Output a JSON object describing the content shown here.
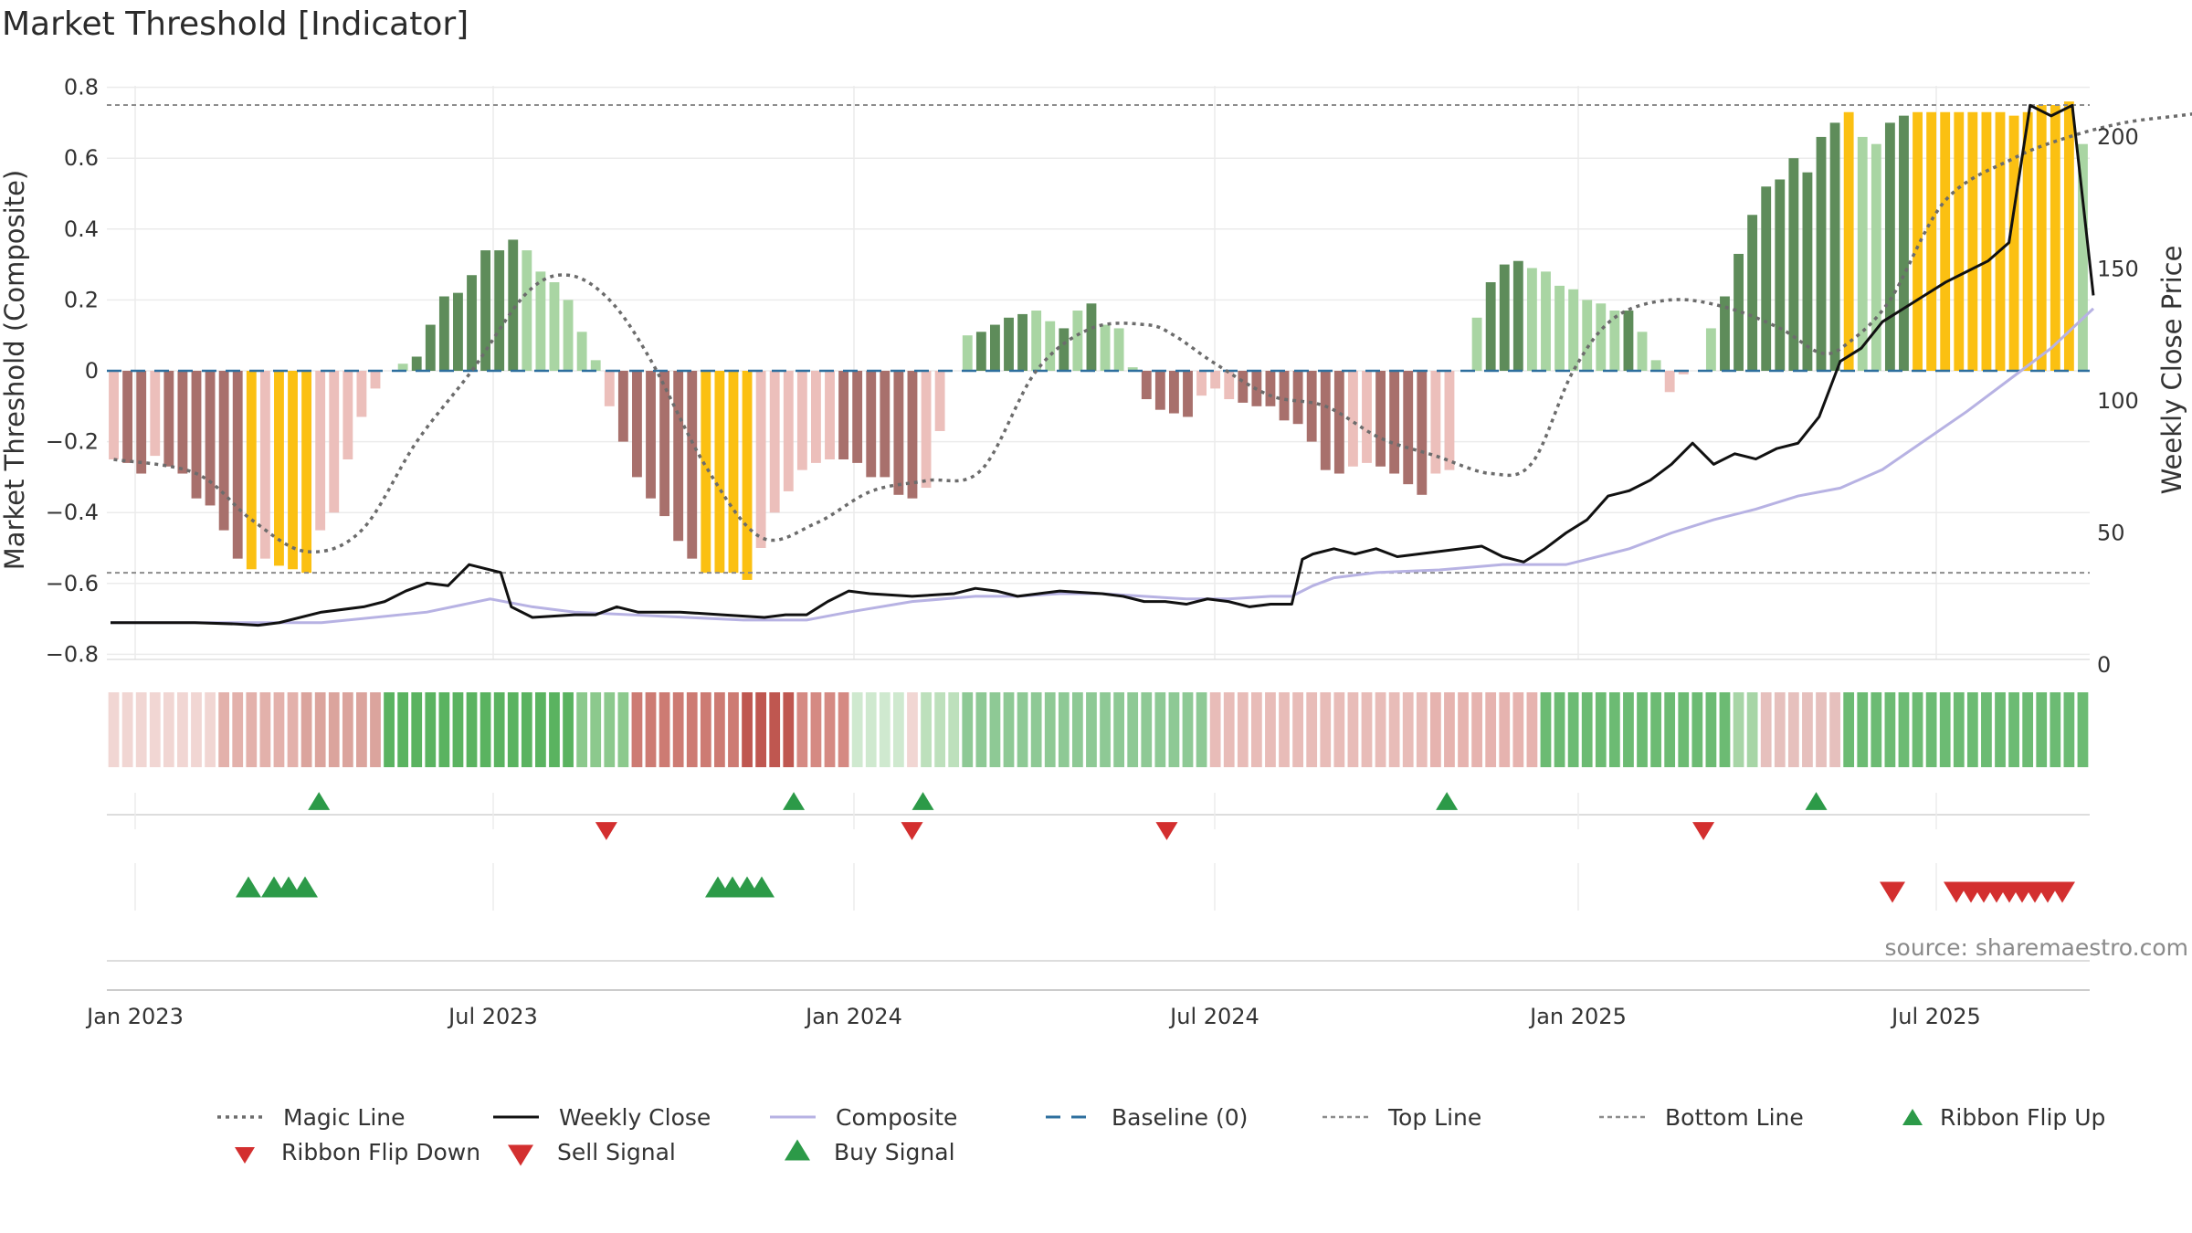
{
  "title": "Market Threshold [Indicator]",
  "source": "source: sharemaestro.com",
  "colors": {
    "weak_red": "#ecbfbb",
    "strong_red": "#a8706c",
    "extreme": "#fbc012",
    "weak_green": "#a9d5a3",
    "strong_green": "#5e8c5a",
    "magic": "#6c6c6c",
    "close": "#111111",
    "composite": "#b7b2e3",
    "baseline": "#2e6f9e",
    "ref": "#8c8c8c",
    "up": "#2c9a48",
    "down": "#d32f2f"
  },
  "chart_data": {
    "type": "bar+line",
    "title": "Market Threshold [Indicator]",
    "ylabel": "Market Threshold (Composite)",
    "y2label": "Weekly Close Price",
    "ylim": [
      -0.82,
      0.82
    ],
    "y2lim": [
      0,
      220
    ],
    "yticks": [
      "0.8",
      "0.6",
      "0.4",
      "0.2",
      "0",
      "−0.2",
      "−0.4",
      "−0.6",
      "−0.8"
    ],
    "y2ticks": [
      "200",
      "150",
      "100",
      "50",
      "0"
    ],
    "xticks": [
      "Jan 2023",
      "Jul 2023",
      "Jan 2024",
      "Jul 2024",
      "Jan 2025",
      "Jul 2025"
    ],
    "top_line": 0.75,
    "bottom_line": -0.57,
    "baseline": 0,
    "bars": [
      [
        -0.25,
        "w"
      ],
      [
        -0.26,
        "s"
      ],
      [
        -0.29,
        "s"
      ],
      [
        -0.24,
        "w"
      ],
      [
        -0.27,
        "s"
      ],
      [
        -0.29,
        "s"
      ],
      [
        -0.36,
        "s"
      ],
      [
        -0.38,
        "s"
      ],
      [
        -0.45,
        "s"
      ],
      [
        -0.53,
        "s"
      ],
      [
        -0.56,
        "e"
      ],
      [
        -0.53,
        "w"
      ],
      [
        -0.55,
        "e"
      ],
      [
        -0.56,
        "e"
      ],
      [
        -0.57,
        "e"
      ],
      [
        -0.45,
        "w"
      ],
      [
        -0.4,
        "w"
      ],
      [
        -0.25,
        "w"
      ],
      [
        -0.13,
        "w"
      ],
      [
        -0.05,
        "w"
      ],
      [
        0.0,
        "w"
      ],
      [
        0.02,
        "w"
      ],
      [
        0.04,
        "s"
      ],
      [
        0.13,
        "s"
      ],
      [
        0.21,
        "s"
      ],
      [
        0.22,
        "s"
      ],
      [
        0.27,
        "s"
      ],
      [
        0.34,
        "s"
      ],
      [
        0.34,
        "s"
      ],
      [
        0.37,
        "s"
      ],
      [
        0.34,
        "w"
      ],
      [
        0.28,
        "w"
      ],
      [
        0.25,
        "w"
      ],
      [
        0.2,
        "w"
      ],
      [
        0.11,
        "w"
      ],
      [
        0.03,
        "w"
      ],
      [
        -0.1,
        "w"
      ],
      [
        -0.2,
        "s"
      ],
      [
        -0.3,
        "s"
      ],
      [
        -0.36,
        "s"
      ],
      [
        -0.41,
        "s"
      ],
      [
        -0.48,
        "s"
      ],
      [
        -0.53,
        "s"
      ],
      [
        -0.57,
        "e"
      ],
      [
        -0.57,
        "e"
      ],
      [
        -0.57,
        "e"
      ],
      [
        -0.59,
        "e"
      ],
      [
        -0.5,
        "w"
      ],
      [
        -0.4,
        "w"
      ],
      [
        -0.34,
        "w"
      ],
      [
        -0.28,
        "w"
      ],
      [
        -0.26,
        "w"
      ],
      [
        -0.25,
        "w"
      ],
      [
        -0.25,
        "s"
      ],
      [
        -0.26,
        "s"
      ],
      [
        -0.3,
        "s"
      ],
      [
        -0.3,
        "s"
      ],
      [
        -0.35,
        "s"
      ],
      [
        -0.36,
        "s"
      ],
      [
        -0.33,
        "w"
      ],
      [
        -0.17,
        "w"
      ],
      [
        0.0,
        "w"
      ],
      [
        0.1,
        "w"
      ],
      [
        0.11,
        "s"
      ],
      [
        0.13,
        "s"
      ],
      [
        0.15,
        "s"
      ],
      [
        0.16,
        "s"
      ],
      [
        0.17,
        "w"
      ],
      [
        0.14,
        "w"
      ],
      [
        0.12,
        "s"
      ],
      [
        0.17,
        "w"
      ],
      [
        0.19,
        "s"
      ],
      [
        0.13,
        "w"
      ],
      [
        0.12,
        "w"
      ],
      [
        0.01,
        "w"
      ],
      [
        -0.08,
        "s"
      ],
      [
        -0.11,
        "s"
      ],
      [
        -0.12,
        "s"
      ],
      [
        -0.13,
        "s"
      ],
      [
        -0.07,
        "w"
      ],
      [
        -0.05,
        "w"
      ],
      [
        -0.08,
        "w"
      ],
      [
        -0.09,
        "s"
      ],
      [
        -0.1,
        "s"
      ],
      [
        -0.1,
        "s"
      ],
      [
        -0.14,
        "s"
      ],
      [
        -0.15,
        "s"
      ],
      [
        -0.2,
        "s"
      ],
      [
        -0.28,
        "s"
      ],
      [
        -0.29,
        "s"
      ],
      [
        -0.27,
        "w"
      ],
      [
        -0.26,
        "w"
      ],
      [
        -0.27,
        "s"
      ],
      [
        -0.29,
        "s"
      ],
      [
        -0.32,
        "s"
      ],
      [
        -0.35,
        "s"
      ],
      [
        -0.29,
        "w"
      ],
      [
        -0.28,
        "w"
      ],
      [
        0.0,
        "w"
      ],
      [
        0.15,
        "w"
      ],
      [
        0.25,
        "s"
      ],
      [
        0.3,
        "s"
      ],
      [
        0.31,
        "s"
      ],
      [
        0.29,
        "w"
      ],
      [
        0.28,
        "w"
      ],
      [
        0.24,
        "w"
      ],
      [
        0.23,
        "w"
      ],
      [
        0.2,
        "w"
      ],
      [
        0.19,
        "w"
      ],
      [
        0.17,
        "w"
      ],
      [
        0.17,
        "s"
      ],
      [
        0.11,
        "w"
      ],
      [
        0.03,
        "w"
      ],
      [
        -0.06,
        "w"
      ],
      [
        -0.01,
        "w"
      ],
      [
        0.0,
        "w"
      ],
      [
        0.12,
        "w"
      ],
      [
        0.21,
        "s"
      ],
      [
        0.33,
        "s"
      ],
      [
        0.44,
        "s"
      ],
      [
        0.52,
        "s"
      ],
      [
        0.54,
        "s"
      ],
      [
        0.6,
        "s"
      ],
      [
        0.56,
        "s"
      ],
      [
        0.66,
        "s"
      ],
      [
        0.7,
        "s"
      ],
      [
        0.73,
        "e"
      ],
      [
        0.66,
        "w"
      ],
      [
        0.64,
        "w"
      ],
      [
        0.7,
        "s"
      ],
      [
        0.72,
        "s"
      ],
      [
        0.73,
        "e"
      ],
      [
        0.73,
        "e"
      ],
      [
        0.73,
        "e"
      ],
      [
        0.73,
        "e"
      ],
      [
        0.73,
        "e"
      ],
      [
        0.73,
        "e"
      ],
      [
        0.73,
        "e"
      ],
      [
        0.72,
        "e"
      ],
      [
        0.73,
        "e"
      ],
      [
        0.75,
        "e"
      ],
      [
        0.75,
        "e"
      ],
      [
        0.76,
        "e"
      ],
      [
        0.64,
        "w"
      ]
    ],
    "magic_line": [
      [
        0,
        -0.25
      ],
      [
        6,
        -0.29
      ],
      [
        10,
        -0.42
      ],
      [
        14,
        -0.51
      ],
      [
        18,
        -0.45
      ],
      [
        22,
        -0.2
      ],
      [
        26,
        0.0
      ],
      [
        30,
        0.22
      ],
      [
        33,
        0.27
      ],
      [
        36,
        0.2
      ],
      [
        39,
        0.03
      ],
      [
        43,
        -0.27
      ],
      [
        47,
        -0.47
      ],
      [
        51,
        -0.43
      ],
      [
        55,
        -0.34
      ],
      [
        59,
        -0.31
      ],
      [
        63,
        -0.28
      ],
      [
        67,
        0.0
      ],
      [
        71,
        0.12
      ],
      [
        75,
        0.13
      ],
      [
        77,
        0.1
      ],
      [
        80,
        0.02
      ],
      [
        84,
        -0.07
      ],
      [
        88,
        -0.1
      ],
      [
        92,
        -0.19
      ],
      [
        96,
        -0.24
      ],
      [
        100,
        -0.29
      ],
      [
        103,
        -0.26
      ],
      [
        106,
        0.0
      ],
      [
        109,
        0.15
      ],
      [
        113,
        0.2
      ],
      [
        117,
        0.18
      ],
      [
        121,
        0.12
      ],
      [
        124,
        0.05
      ],
      [
        126,
        0.08
      ],
      [
        129,
        0.2
      ],
      [
        133,
        0.48
      ],
      [
        138,
        0.6
      ],
      [
        142,
        0.66
      ],
      [
        146,
        0.7
      ],
      [
        150,
        0.72
      ],
      [
        152,
        0.73
      ],
      [
        154,
        0.74
      ],
      [
        156,
        0.71
      ]
    ],
    "weekly_close": [
      [
        0,
        16
      ],
      [
        2,
        16
      ],
      [
        4,
        16
      ],
      [
        8,
        16
      ],
      [
        12,
        15.5
      ],
      [
        14,
        15
      ],
      [
        16,
        16
      ],
      [
        20,
        20
      ],
      [
        24,
        22
      ],
      [
        26,
        24
      ],
      [
        28,
        28
      ],
      [
        30,
        31
      ],
      [
        32,
        30
      ],
      [
        34,
        38
      ],
      [
        36,
        36
      ],
      [
        37,
        35
      ],
      [
        38,
        22
      ],
      [
        40,
        18
      ],
      [
        44,
        19
      ],
      [
        46,
        19
      ],
      [
        48,
        22
      ],
      [
        50,
        20
      ],
      [
        54,
        20
      ],
      [
        58,
        19
      ],
      [
        62,
        18
      ],
      [
        64,
        19
      ],
      [
        66,
        19
      ],
      [
        68,
        24
      ],
      [
        70,
        28
      ],
      [
        72,
        27
      ],
      [
        76,
        26
      ],
      [
        80,
        27
      ],
      [
        82,
        29
      ],
      [
        84,
        28
      ],
      [
        86,
        26
      ],
      [
        88,
        27
      ],
      [
        90,
        28
      ],
      [
        94,
        27
      ],
      [
        96,
        26
      ],
      [
        98,
        24
      ],
      [
        100,
        24
      ],
      [
        102,
        23
      ],
      [
        104,
        25
      ],
      [
        106,
        24
      ],
      [
        108,
        22
      ],
      [
        110,
        23
      ],
      [
        112,
        23
      ],
      [
        113,
        40
      ],
      [
        114,
        42
      ],
      [
        116,
        44
      ],
      [
        118,
        42
      ],
      [
        120,
        44
      ],
      [
        122,
        41
      ],
      [
        124,
        42
      ],
      [
        126,
        43
      ],
      [
        128,
        44
      ],
      [
        130,
        45
      ],
      [
        132,
        41
      ],
      [
        134,
        39
      ],
      [
        136,
        44
      ],
      [
        138,
        50
      ],
      [
        140,
        55
      ],
      [
        142,
        64
      ],
      [
        144,
        66
      ],
      [
        146,
        70
      ],
      [
        148,
        76
      ],
      [
        150,
        84
      ],
      [
        152,
        76
      ],
      [
        154,
        80
      ],
      [
        156,
        78
      ],
      [
        158,
        82
      ],
      [
        160,
        84
      ],
      [
        162,
        94
      ],
      [
        164,
        115
      ],
      [
        166,
        120
      ],
      [
        168,
        130
      ],
      [
        170,
        135
      ],
      [
        172,
        140
      ],
      [
        174,
        145
      ],
      [
        176,
        149
      ],
      [
        178,
        153
      ],
      [
        180,
        160
      ],
      [
        182,
        212
      ],
      [
        184,
        208
      ],
      [
        186,
        212
      ],
      [
        188,
        140
      ]
    ],
    "composite": [
      [
        0,
        16
      ],
      [
        20,
        16
      ],
      [
        30,
        20
      ],
      [
        36,
        25
      ],
      [
        40,
        22
      ],
      [
        44,
        20
      ],
      [
        60,
        17
      ],
      [
        66,
        17
      ],
      [
        70,
        20
      ],
      [
        76,
        24
      ],
      [
        82,
        26
      ],
      [
        86,
        26
      ],
      [
        90,
        27
      ],
      [
        94,
        27
      ],
      [
        98,
        26
      ],
      [
        102,
        25
      ],
      [
        106,
        25
      ],
      [
        110,
        26
      ],
      [
        112,
        26
      ],
      [
        114,
        30
      ],
      [
        116,
        33
      ],
      [
        120,
        35
      ],
      [
        126,
        36
      ],
      [
        132,
        38
      ],
      [
        134,
        38
      ],
      [
        138,
        38
      ],
      [
        140,
        40
      ],
      [
        144,
        44
      ],
      [
        148,
        50
      ],
      [
        152,
        55
      ],
      [
        156,
        59
      ],
      [
        160,
        64
      ],
      [
        164,
        67
      ],
      [
        168,
        74
      ],
      [
        172,
        85
      ],
      [
        176,
        96
      ],
      [
        180,
        108
      ],
      [
        184,
        120
      ],
      [
        188,
        135
      ]
    ],
    "ribbon": [
      [
        0,
        "#f1d6d3"
      ],
      [
        8,
        "#e3b1ab"
      ],
      [
        14,
        "#dba49d"
      ],
      [
        20,
        "#5ab360"
      ],
      [
        34,
        "#8cc98d"
      ],
      [
        38,
        "#cd7b73"
      ],
      [
        46,
        "#bf5750"
      ],
      [
        50,
        "#d58a83"
      ],
      [
        54,
        "#cfe9cf"
      ],
      [
        58,
        "#f1d6d3"
      ],
      [
        59,
        "#bde0bc"
      ],
      [
        62,
        "#8ec995"
      ],
      [
        80,
        "#e8bcb8"
      ],
      [
        96,
        "#e6b3af"
      ],
      [
        104,
        "#6cbb73"
      ],
      [
        118,
        "#a7d5a6"
      ],
      [
        120,
        "#e6c0bd"
      ],
      [
        126,
        "#6cbb73"
      ],
      [
        150,
        "#a6d4a4"
      ]
    ],
    "ribbon_flip_up": [
      "2023-04",
      "2023-12",
      "2024-02",
      "2024-11",
      "2025-05"
    ],
    "ribbon_flip_down": [
      "2023-09",
      "2024-02",
      "2024-06",
      "2025-03"
    ],
    "buy_signals": [
      "2023-03",
      "2023-03",
      "2023-03",
      "2023-04",
      "2023-11",
      "2023-11",
      "2023-11",
      "2023-11"
    ],
    "sell_signals": [
      "2025-06",
      "2025-07",
      "2025-07",
      "2025-08",
      "2025-08",
      "2025-08",
      "2025-08",
      "2025-09",
      "2025-09",
      "2025-09"
    ]
  },
  "legend": [
    {
      "label": "Magic Line",
      "kind": "dotted"
    },
    {
      "label": "Weekly Close",
      "kind": "solid"
    },
    {
      "label": "Composite",
      "kind": "composite"
    },
    {
      "label": "Baseline (0)",
      "kind": "dashed"
    },
    {
      "label": "Top Line",
      "kind": "refdash"
    },
    {
      "label": "Bottom Line",
      "kind": "refdash"
    },
    {
      "label": "Ribbon Flip Up",
      "kind": "tri-up-small"
    },
    {
      "label": "Ribbon Flip Down",
      "kind": "tri-down-small"
    },
    {
      "label": "Sell Signal",
      "kind": "tri-down"
    },
    {
      "label": "Buy Signal",
      "kind": "tri-up"
    }
  ]
}
